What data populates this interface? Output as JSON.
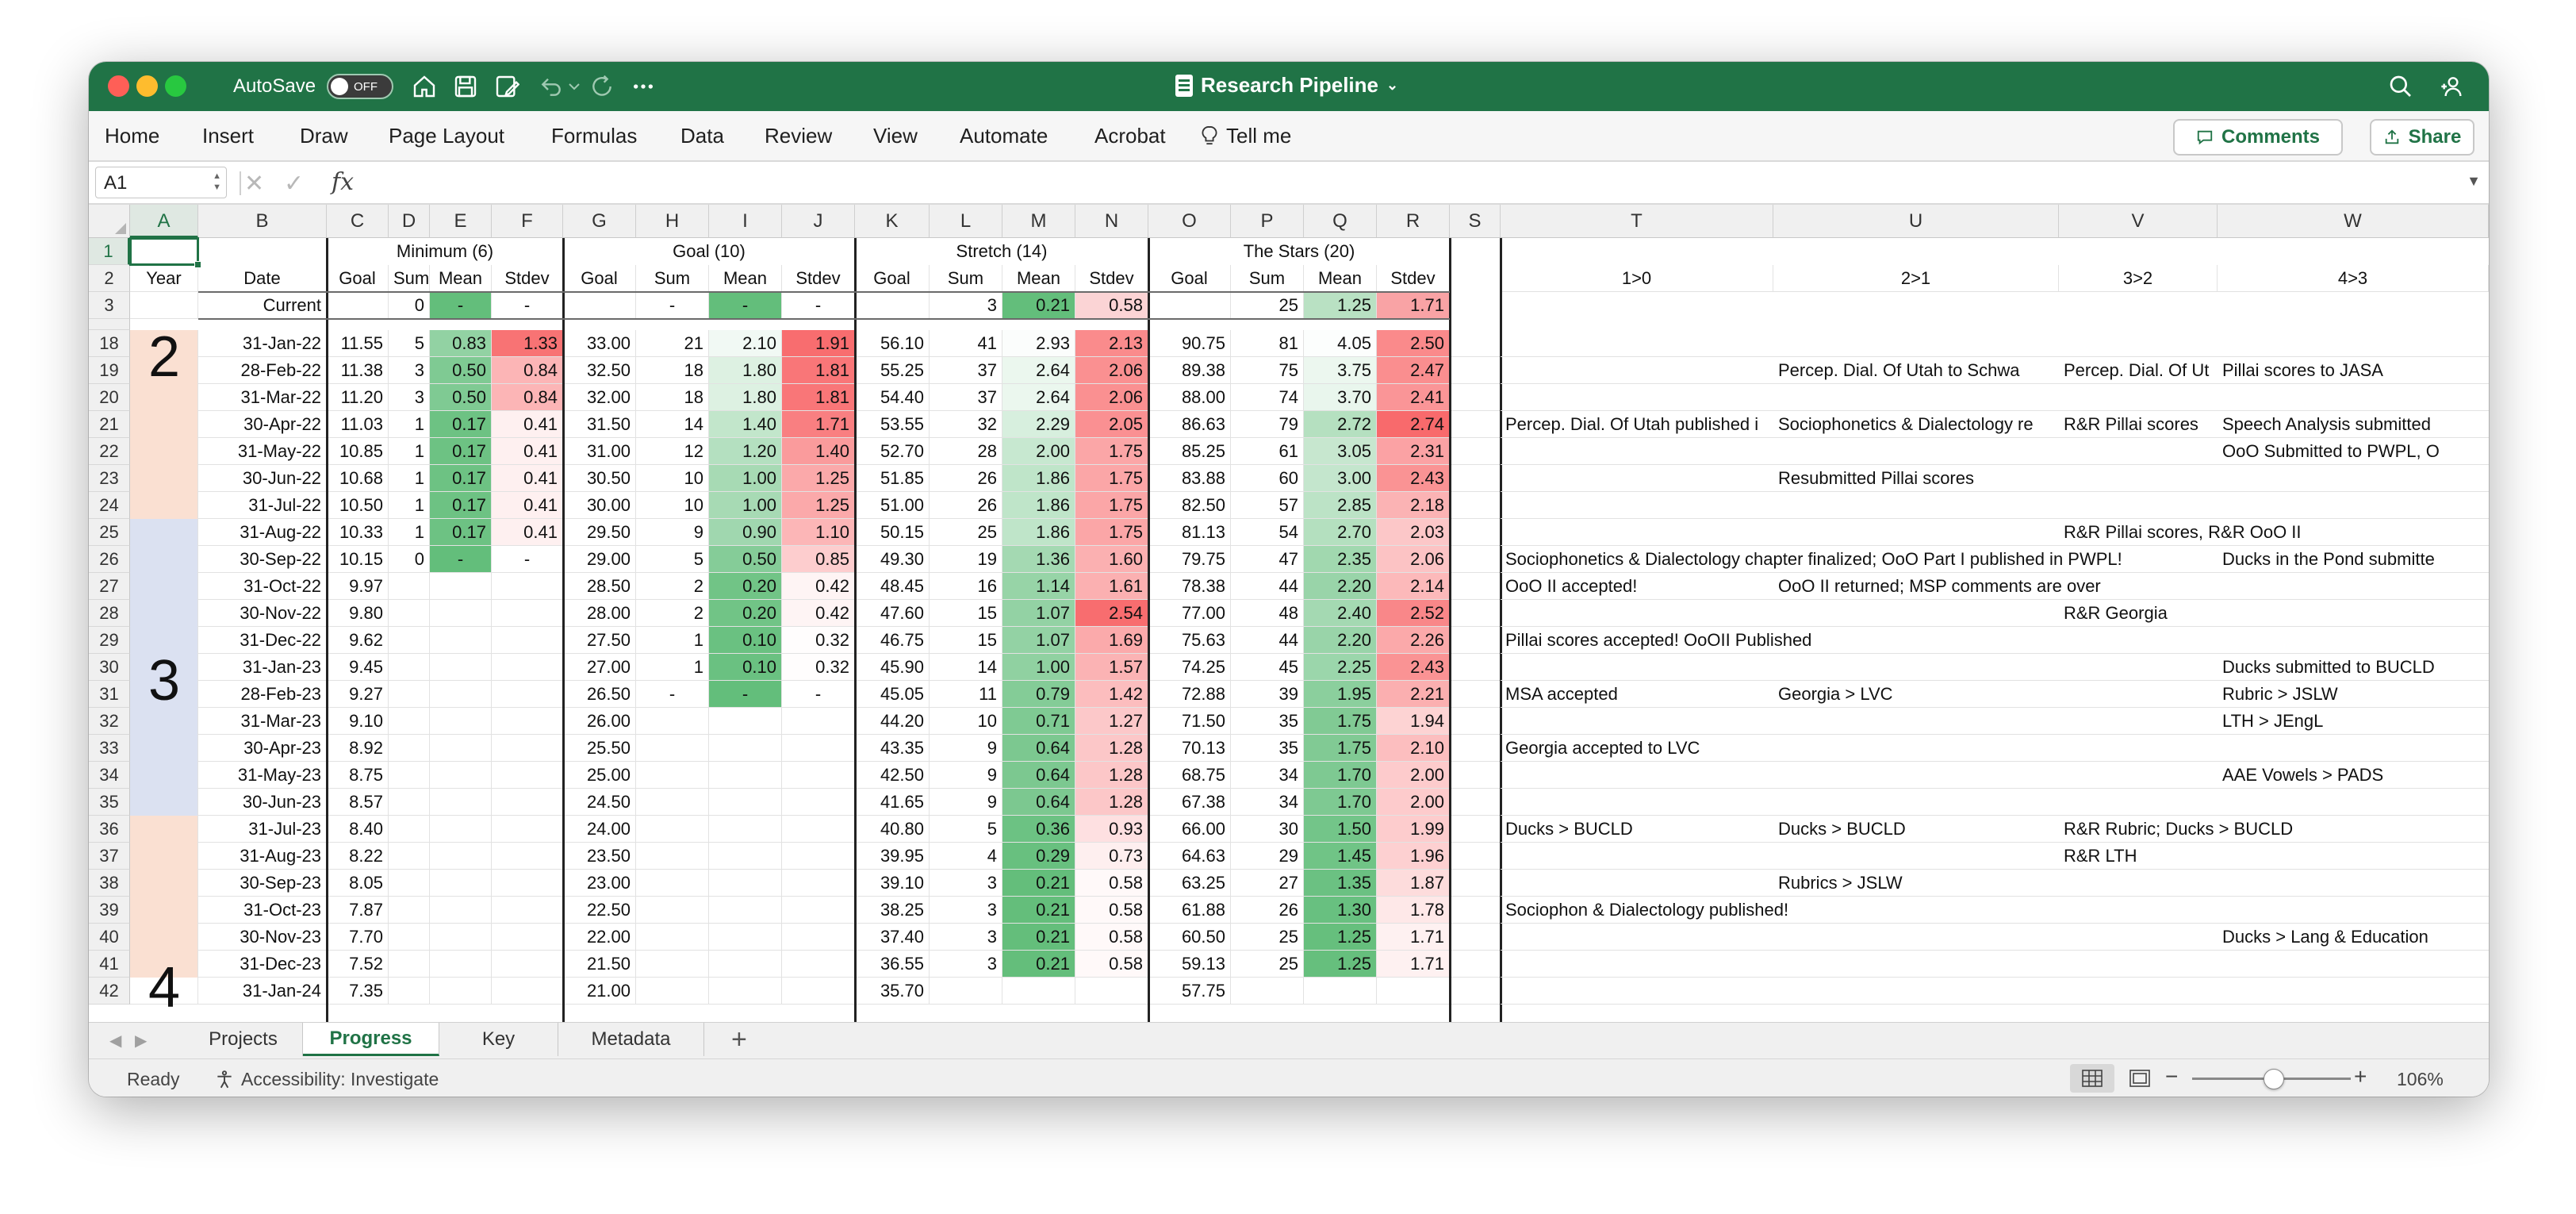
{
  "window": {
    "autosave_label": "AutoSave",
    "autosave_state": "OFF",
    "title": "Research Pipeline"
  },
  "ribbon": {
    "tabs": [
      "Home",
      "Insert",
      "Draw",
      "Page Layout",
      "Formulas",
      "Data",
      "Review",
      "View",
      "Automate",
      "Acrobat",
      "Tell me"
    ],
    "comments_label": "Comments",
    "share_label": "Share"
  },
  "formula_bar": {
    "name_box": "A1",
    "fx_label": "fx",
    "value": ""
  },
  "columns": [
    "A",
    "B",
    "C",
    "D",
    "E",
    "F",
    "G",
    "H",
    "I",
    "J",
    "K",
    "L",
    "M",
    "N",
    "O",
    "P",
    "Q",
    "R",
    "S",
    "T",
    "U",
    "V",
    "W"
  ],
  "header": {
    "groups": [
      "Minimum (6)",
      "Goal (10)",
      "Stretch (14)",
      "The Stars (20)"
    ],
    "row2": {
      "year": "Year",
      "date": "Date",
      "sub": [
        "Goal",
        "Sum",
        "Mean",
        "Stdev"
      ],
      "transitions": [
        "1>0",
        "2>1",
        "3>2",
        "4>3"
      ]
    },
    "row3": {
      "date": "Current",
      "min_sum": "0",
      "min_mean": "-",
      "min_stdev": "-",
      "goal_sum": "-",
      "goal_mean": "-",
      "goal_stdev": "-",
      "str_sum": "3",
      "str_mean": "0.21",
      "str_stdev": "0.58",
      "stars_sum": "25",
      "stars_mean": "1.25",
      "stars_stdev": "1.71"
    }
  },
  "years": {
    "year2": "2",
    "year3": "3",
    "year4": "4"
  },
  "rows": [
    {
      "n": "18",
      "date": "31-Jan-22",
      "c": "11.55",
      "d": "5",
      "e": "0.83",
      "f": "1.33",
      "g": "33.00",
      "h": "21",
      "i": "2.10",
      "j": "1.91",
      "k": "56.10",
      "l": "41",
      "m": "2.93",
      "nn": "2.13",
      "o": "90.75",
      "p": "81",
      "q": "4.05",
      "r": "2.50",
      "t": "",
      "u": "",
      "v": "",
      "w": ""
    },
    {
      "n": "19",
      "date": "28-Feb-22",
      "c": "11.38",
      "d": "3",
      "e": "0.50",
      "f": "0.84",
      "g": "32.50",
      "h": "18",
      "i": "1.80",
      "j": "1.81",
      "k": "55.25",
      "l": "37",
      "m": "2.64",
      "nn": "2.06",
      "o": "89.38",
      "p": "75",
      "q": "3.75",
      "r": "2.47",
      "t": "",
      "u": "Percep. Dial. Of Utah to Schwa",
      "v": "Percep. Dial. Of Ut",
      "w": "Pillai scores to JASA"
    },
    {
      "n": "20",
      "date": "31-Mar-22",
      "c": "11.20",
      "d": "3",
      "e": "0.50",
      "f": "0.84",
      "g": "32.00",
      "h": "18",
      "i": "1.80",
      "j": "1.81",
      "k": "54.40",
      "l": "37",
      "m": "2.64",
      "nn": "2.06",
      "o": "88.00",
      "p": "74",
      "q": "3.70",
      "r": "2.41",
      "t": "",
      "u": "",
      "v": "",
      "w": ""
    },
    {
      "n": "21",
      "date": "30-Apr-22",
      "c": "11.03",
      "d": "1",
      "e": "0.17",
      "f": "0.41",
      "g": "31.50",
      "h": "14",
      "i": "1.40",
      "j": "1.71",
      "k": "53.55",
      "l": "32",
      "m": "2.29",
      "nn": "2.05",
      "o": "86.63",
      "p": "79",
      "q": "2.72",
      "r": "2.74",
      "t": "Percep. Dial. Of Utah published i",
      "u": "Sociophonetics & Dialectology re",
      "v": "R&R Pillai scores",
      "w": "Speech Analysis submitted"
    },
    {
      "n": "22",
      "date": "31-May-22",
      "c": "10.85",
      "d": "1",
      "e": "0.17",
      "f": "0.41",
      "g": "31.00",
      "h": "12",
      "i": "1.20",
      "j": "1.40",
      "k": "52.70",
      "l": "28",
      "m": "2.00",
      "nn": "1.75",
      "o": "85.25",
      "p": "61",
      "q": "3.05",
      "r": "2.31",
      "t": "",
      "u": "",
      "v": "",
      "w": "OoO Submitted to PWPL, O"
    },
    {
      "n": "23",
      "date": "30-Jun-22",
      "c": "10.68",
      "d": "1",
      "e": "0.17",
      "f": "0.41",
      "g": "30.50",
      "h": "10",
      "i": "1.00",
      "j": "1.25",
      "k": "51.85",
      "l": "26",
      "m": "1.86",
      "nn": "1.75",
      "o": "83.88",
      "p": "60",
      "q": "3.00",
      "r": "2.43",
      "t": "",
      "u": "Resubmitted Pillai scores",
      "v": "",
      "w": ""
    },
    {
      "n": "24",
      "date": "31-Jul-22",
      "c": "10.50",
      "d": "1",
      "e": "0.17",
      "f": "0.41",
      "g": "30.00",
      "h": "10",
      "i": "1.00",
      "j": "1.25",
      "k": "51.00",
      "l": "26",
      "m": "1.86",
      "nn": "1.75",
      "o": "82.50",
      "p": "57",
      "q": "2.85",
      "r": "2.18",
      "t": "",
      "u": "",
      "v": "",
      "w": ""
    },
    {
      "n": "25",
      "date": "31-Aug-22",
      "c": "10.33",
      "d": "1",
      "e": "0.17",
      "f": "0.41",
      "g": "29.50",
      "h": "9",
      "i": "0.90",
      "j": "1.10",
      "k": "50.15",
      "l": "25",
      "m": "1.86",
      "nn": "1.75",
      "o": "81.13",
      "p": "54",
      "q": "2.70",
      "r": "2.03",
      "t": "",
      "u": "",
      "v": "R&R Pillai scores, R&R OoO II",
      "w": ""
    },
    {
      "n": "26",
      "date": "30-Sep-22",
      "c": "10.15",
      "d": "0",
      "e": "-",
      "f": "-",
      "g": "29.00",
      "h": "5",
      "i": "0.50",
      "j": "0.85",
      "k": "49.30",
      "l": "19",
      "m": "1.36",
      "nn": "1.60",
      "o": "79.75",
      "p": "47",
      "q": "2.35",
      "r": "2.06",
      "t": "Sociophonetics & Dialectology chapter finalized; OoO Part I published in PWPL!",
      "u": "",
      "v": "",
      "w": "Ducks in the Pond submitte"
    },
    {
      "n": "27",
      "date": "31-Oct-22",
      "c": "9.97",
      "d": "",
      "e": "",
      "f": "",
      "g": "28.50",
      "h": "2",
      "i": "0.20",
      "j": "0.42",
      "k": "48.45",
      "l": "16",
      "m": "1.14",
      "nn": "1.61",
      "o": "78.38",
      "p": "44",
      "q": "2.20",
      "r": "2.14",
      "t": "OoO II accepted!",
      "u": "OoO II returned; MSP comments are over",
      "v": "",
      "w": ""
    },
    {
      "n": "28",
      "date": "30-Nov-22",
      "c": "9.80",
      "d": "",
      "e": "",
      "f": "",
      "g": "28.00",
      "h": "2",
      "i": "0.20",
      "j": "0.42",
      "k": "47.60",
      "l": "15",
      "m": "1.07",
      "nn": "2.54",
      "o": "77.00",
      "p": "48",
      "q": "2.40",
      "r": "2.52",
      "t": "",
      "u": "",
      "v": "R&R Georgia",
      "w": ""
    },
    {
      "n": "29",
      "date": "31-Dec-22",
      "c": "9.62",
      "d": "",
      "e": "",
      "f": "",
      "g": "27.50",
      "h": "1",
      "i": "0.10",
      "j": "0.32",
      "k": "46.75",
      "l": "15",
      "m": "1.07",
      "nn": "1.69",
      "o": "75.63",
      "p": "44",
      "q": "2.20",
      "r": "2.26",
      "t": "Pillai scores accepted! OoOII Published",
      "u": "",
      "v": "",
      "w": ""
    },
    {
      "n": "30",
      "date": "31-Jan-23",
      "c": "9.45",
      "d": "",
      "e": "",
      "f": "",
      "g": "27.00",
      "h": "1",
      "i": "0.10",
      "j": "0.32",
      "k": "45.90",
      "l": "14",
      "m": "1.00",
      "nn": "1.57",
      "o": "74.25",
      "p": "45",
      "q": "2.25",
      "r": "2.43",
      "t": "",
      "u": "",
      "v": "",
      "w": "Ducks submitted to BUCLD"
    },
    {
      "n": "31",
      "date": "28-Feb-23",
      "c": "9.27",
      "d": "",
      "e": "",
      "f": "",
      "g": "26.50",
      "h": "-",
      "i": "-",
      "j": "-",
      "k": "45.05",
      "l": "11",
      "m": "0.79",
      "nn": "1.42",
      "o": "72.88",
      "p": "39",
      "q": "1.95",
      "r": "2.21",
      "t": "MSA accepted",
      "u": "Georgia > LVC",
      "v": "",
      "w": "Rubric > JSLW"
    },
    {
      "n": "32",
      "date": "31-Mar-23",
      "c": "9.10",
      "d": "",
      "e": "",
      "f": "",
      "g": "26.00",
      "h": "",
      "i": "",
      "j": "",
      "k": "44.20",
      "l": "10",
      "m": "0.71",
      "nn": "1.27",
      "o": "71.50",
      "p": "35",
      "q": "1.75",
      "r": "1.94",
      "t": "",
      "u": "",
      "v": "",
      "w": "LTH > JEngL"
    },
    {
      "n": "33",
      "date": "30-Apr-23",
      "c": "8.92",
      "d": "",
      "e": "",
      "f": "",
      "g": "25.50",
      "h": "",
      "i": "",
      "j": "",
      "k": "43.35",
      "l": "9",
      "m": "0.64",
      "nn": "1.28",
      "o": "70.13",
      "p": "35",
      "q": "1.75",
      "r": "2.10",
      "t": "Georgia accepted to LVC",
      "u": "",
      "v": "",
      "w": ""
    },
    {
      "n": "34",
      "date": "31-May-23",
      "c": "8.75",
      "d": "",
      "e": "",
      "f": "",
      "g": "25.00",
      "h": "",
      "i": "",
      "j": "",
      "k": "42.50",
      "l": "9",
      "m": "0.64",
      "nn": "1.28",
      "o": "68.75",
      "p": "34",
      "q": "1.70",
      "r": "2.00",
      "t": "",
      "u": "",
      "v": "",
      "w": "AAE Vowels > PADS"
    },
    {
      "n": "35",
      "date": "30-Jun-23",
      "c": "8.57",
      "d": "",
      "e": "",
      "f": "",
      "g": "24.50",
      "h": "",
      "i": "",
      "j": "",
      "k": "41.65",
      "l": "9",
      "m": "0.64",
      "nn": "1.28",
      "o": "67.38",
      "p": "34",
      "q": "1.70",
      "r": "2.00",
      "t": "",
      "u": "",
      "v": "",
      "w": ""
    },
    {
      "n": "36",
      "date": "31-Jul-23",
      "c": "8.40",
      "d": "",
      "e": "",
      "f": "",
      "g": "24.00",
      "h": "",
      "i": "",
      "j": "",
      "k": "40.80",
      "l": "5",
      "m": "0.36",
      "nn": "0.93",
      "o": "66.00",
      "p": "30",
      "q": "1.50",
      "r": "1.99",
      "t": "Ducks > BUCLD",
      "u": "Ducks > BUCLD",
      "v": "R&R Rubric; Ducks > BUCLD",
      "w": ""
    },
    {
      "n": "37",
      "date": "31-Aug-23",
      "c": "8.22",
      "d": "",
      "e": "",
      "f": "",
      "g": "23.50",
      "h": "",
      "i": "",
      "j": "",
      "k": "39.95",
      "l": "4",
      "m": "0.29",
      "nn": "0.73",
      "o": "64.63",
      "p": "29",
      "q": "1.45",
      "r": "1.96",
      "t": "",
      "u": "",
      "v": "R&R LTH",
      "w": ""
    },
    {
      "n": "38",
      "date": "30-Sep-23",
      "c": "8.05",
      "d": "",
      "e": "",
      "f": "",
      "g": "23.00",
      "h": "",
      "i": "",
      "j": "",
      "k": "39.10",
      "l": "3",
      "m": "0.21",
      "nn": "0.58",
      "o": "63.25",
      "p": "27",
      "q": "1.35",
      "r": "1.87",
      "t": "",
      "u": "Rubrics > JSLW",
      "v": "",
      "w": ""
    },
    {
      "n": "39",
      "date": "31-Oct-23",
      "c": "7.87",
      "d": "",
      "e": "",
      "f": "",
      "g": "22.50",
      "h": "",
      "i": "",
      "j": "",
      "k": "38.25",
      "l": "3",
      "m": "0.21",
      "nn": "0.58",
      "o": "61.88",
      "p": "26",
      "q": "1.30",
      "r": "1.78",
      "t": "Sociophon & Dialectology published!",
      "u": "",
      "v": "",
      "w": ""
    },
    {
      "n": "40",
      "date": "30-Nov-23",
      "c": "7.70",
      "d": "",
      "e": "",
      "f": "",
      "g": "22.00",
      "h": "",
      "i": "",
      "j": "",
      "k": "37.40",
      "l": "3",
      "m": "0.21",
      "nn": "0.58",
      "o": "60.50",
      "p": "25",
      "q": "1.25",
      "r": "1.71",
      "t": "",
      "u": "",
      "v": "",
      "w": "Ducks > Lang & Education"
    },
    {
      "n": "41",
      "date": "31-Dec-23",
      "c": "7.52",
      "d": "",
      "e": "",
      "f": "",
      "g": "21.50",
      "h": "",
      "i": "",
      "j": "",
      "k": "36.55",
      "l": "3",
      "m": "0.21",
      "nn": "0.58",
      "o": "59.13",
      "p": "25",
      "q": "1.25",
      "r": "1.71",
      "t": "",
      "u": "",
      "v": "",
      "w": ""
    },
    {
      "n": "42",
      "date": "31-Jan-24",
      "c": "7.35",
      "d": "",
      "e": "",
      "f": "",
      "g": "21.00",
      "h": "",
      "i": "",
      "j": "",
      "k": "35.70",
      "l": "",
      "m": "",
      "nn": "",
      "o": "57.75",
      "p": "",
      "q": "",
      "r": "",
      "t": "",
      "u": "",
      "v": "",
      "w": ""
    }
  ],
  "sheets": [
    "Projects",
    "Progress",
    "Key",
    "Metadata"
  ],
  "active_sheet": "Progress",
  "status": {
    "ready": "Ready",
    "accessibility": "Accessibility: Investigate",
    "zoom": "106%"
  },
  "colors": {
    "excel_green": "#207346",
    "year2_fill": "#fae0d2",
    "year3_fill": "#dbe1f1",
    "good": "#63be7b",
    "bad": "#f8696b"
  }
}
